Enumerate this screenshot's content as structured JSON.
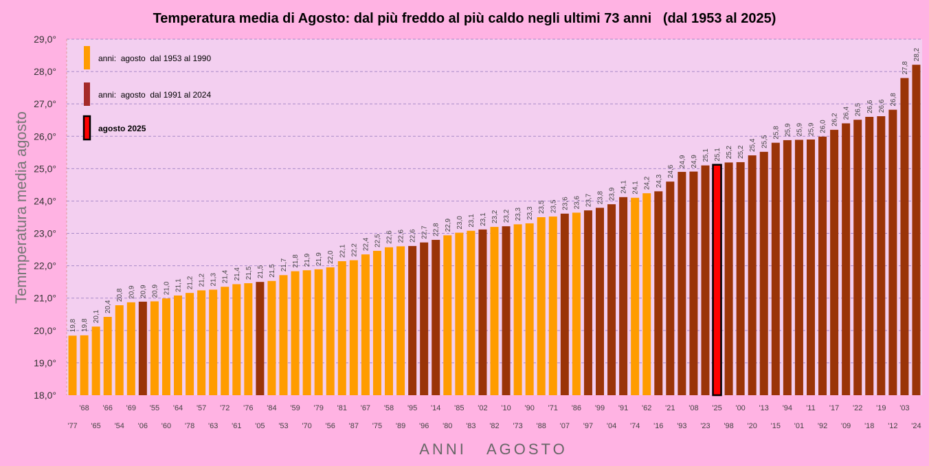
{
  "chart_data": {
    "type": "bar",
    "title": "Temperatura media di Agosto: dal più freddo al più caldo negli ultimi 73 anni   (dal 1953 al 2025)",
    "xlabel": "ANNI   AGOSTO",
    "ylabel": "Temmperatura media agosto",
    "ylim": [
      18.0,
      29.0
    ],
    "yticks": [
      "18,0°",
      "19,0°",
      "20,0°",
      "21,0°",
      "22,0°",
      "23,0°",
      "24,0°",
      "25,0°",
      "26,0°",
      "27,0°",
      "28,0°",
      "29,0°"
    ],
    "grid": true,
    "legend_position": "top-left",
    "legend": [
      {
        "label": "anni:  agosto  dal 1953 al 1990",
        "group": "a"
      },
      {
        "label": "anni:  agosto  dal 1991 al 2024",
        "group": "b"
      },
      {
        "label": "agosto 2025",
        "group": "c",
        "bold": true
      }
    ],
    "colors": {
      "a": "#ff9c00",
      "b": "#9a3408",
      "b_legend": "#a52a2a",
      "c": "#ff0000",
      "c_border": "#000000",
      "plot_bg": "#f3cff0",
      "page_bg": "#ffb3e3",
      "grid": "#a88ac8"
    },
    "categories": [
      "'77",
      "'68",
      "'65",
      "'66",
      "'54",
      "'69",
      "'06",
      "'55",
      "'60",
      "'64",
      "'78",
      "'57",
      "'63",
      "'72",
      "'61",
      "'76",
      "'05",
      "'84",
      "'53",
      "'59",
      "'70",
      "'79",
      "'56",
      "'81",
      "'87",
      "'67",
      "'75",
      "'58",
      "'89",
      "'95",
      "'96",
      "'14",
      "'80",
      "'85",
      "'83",
      "'02",
      "'82",
      "'10",
      "'73",
      "'90",
      "'88",
      "'71",
      "'07",
      "'86",
      "'97",
      "'99",
      "'04",
      "'91",
      "'74",
      "'62",
      "'16",
      "'21",
      "'93",
      "'08",
      "'23",
      "'25",
      "'98",
      "'00",
      "'20",
      "'13",
      "'15",
      "'94",
      "'01",
      "'11",
      "'92",
      "'17",
      "'09",
      "'22",
      "'18",
      "'19",
      "'12",
      "'03",
      "'24"
    ],
    "value_labels": [
      "19,8",
      "19,8",
      "20,1",
      "20,4",
      "20,8",
      "20,9",
      "20,9",
      "20,9",
      "21,0",
      "21,1",
      "21,2",
      "21,2",
      "21,3",
      "21,4",
      "21,4",
      "21,5",
      "21,5",
      "21,5",
      "21,7",
      "21,8",
      "21,9",
      "21,9",
      "22,0",
      "22,1",
      "22,2",
      "22,4",
      "22,5",
      "22,6",
      "22,6",
      "22,6",
      "22,7",
      "22,8",
      "22,9",
      "23,0",
      "23,1",
      "23,1",
      "23,2",
      "23,2",
      "23,3",
      "23,3",
      "23,5",
      "23,5",
      "23,6",
      "23,6",
      "23,7",
      "23,8",
      "23,9",
      "24,1",
      "24,1",
      "24,2",
      "24,3",
      "24,6",
      "24,9",
      "24,9",
      "25,1",
      "25,1",
      "25,2",
      "25,2",
      "25,4",
      "25,5",
      "25,8",
      "25,9",
      "25,9",
      "25,9",
      "26,0",
      "26,2",
      "26,4",
      "26,5",
      "26,6",
      "26,6",
      "26,8",
      "27,8",
      "28,2"
    ],
    "values": [
      19.84,
      19.85,
      20.12,
      20.42,
      20.78,
      20.87,
      20.89,
      20.9,
      20.99,
      21.08,
      21.16,
      21.24,
      21.26,
      21.35,
      21.43,
      21.46,
      21.5,
      21.53,
      21.71,
      21.83,
      21.86,
      21.89,
      21.95,
      22.14,
      22.17,
      22.35,
      22.46,
      22.57,
      22.6,
      22.61,
      22.72,
      22.8,
      22.94,
      23.02,
      23.08,
      23.12,
      23.2,
      23.22,
      23.28,
      23.31,
      23.5,
      23.52,
      23.61,
      23.64,
      23.71,
      23.79,
      23.9,
      24.12,
      24.1,
      24.24,
      24.3,
      24.6,
      24.9,
      24.91,
      25.1,
      25.12,
      25.19,
      25.2,
      25.41,
      25.52,
      25.8,
      25.88,
      25.89,
      25.9,
      25.99,
      26.2,
      26.4,
      26.51,
      26.6,
      26.62,
      26.82,
      27.8,
      28.21
    ],
    "groups": [
      "a",
      "a",
      "a",
      "a",
      "a",
      "a",
      "b",
      "a",
      "a",
      "a",
      "a",
      "a",
      "a",
      "a",
      "a",
      "a",
      "b",
      "a",
      "a",
      "a",
      "a",
      "a",
      "a",
      "a",
      "a",
      "a",
      "a",
      "a",
      "a",
      "b",
      "b",
      "b",
      "a",
      "a",
      "a",
      "b",
      "a",
      "b",
      "a",
      "a",
      "a",
      "a",
      "b",
      "a",
      "b",
      "b",
      "b",
      "b",
      "a",
      "a",
      "b",
      "b",
      "b",
      "b",
      "b",
      "c",
      "b",
      "b",
      "b",
      "b",
      "b",
      "b",
      "b",
      "b",
      "b",
      "b",
      "b",
      "b",
      "b",
      "b",
      "b",
      "b",
      "b"
    ]
  }
}
